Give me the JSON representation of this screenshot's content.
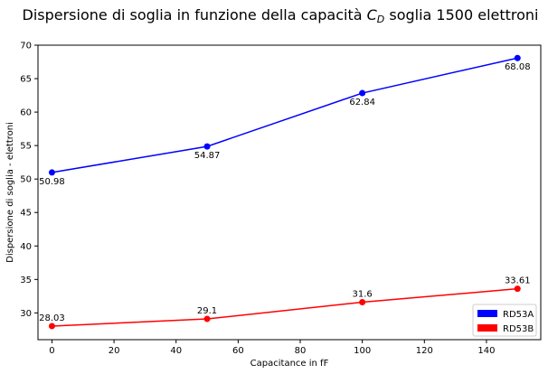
{
  "chart_data": {
    "type": "line",
    "title_prefix": "Dispersione di soglia in funzione della capacità ",
    "title_symbol": "C",
    "title_subscript": "D",
    "title_suffix": " soglia 1500 elettroni",
    "xlabel": "Capacitance in fF",
    "ylabel": "Dispersione di soglia - elettroni",
    "xlim": [
      -4.5,
      157.5
    ],
    "ylim": [
      26,
      70
    ],
    "xticks": [
      0,
      20,
      40,
      60,
      80,
      100,
      120,
      140
    ],
    "yticks": [
      30,
      35,
      40,
      45,
      50,
      55,
      60,
      65,
      70
    ],
    "x": [
      0,
      50,
      100,
      150
    ],
    "grid": false,
    "legend_position": "lower-right",
    "series": [
      {
        "name": "RD53A",
        "color": "#0000ff",
        "values": [
          50.98,
          54.87,
          62.84,
          68.08
        ],
        "labels": [
          "50.98",
          "54.87",
          "62.84",
          "68.08"
        ],
        "label_side": "below"
      },
      {
        "name": "RD53B",
        "color": "#ff0000",
        "values": [
          28.03,
          29.1,
          31.6,
          33.61
        ],
        "labels": [
          "28.03",
          "29.1",
          "31.6",
          "33.61"
        ],
        "label_side": "above"
      }
    ]
  }
}
